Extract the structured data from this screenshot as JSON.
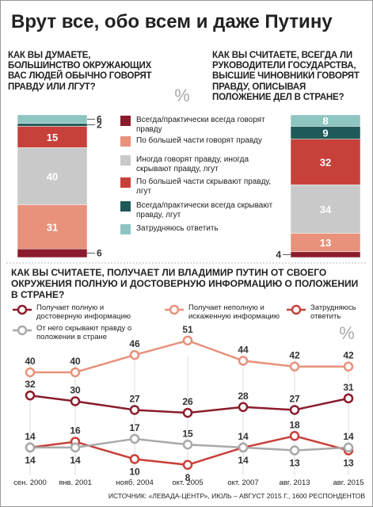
{
  "title": "Врут все, обо всем и даже Путину",
  "source": "ИСТОЧНИК: «ЛЕВАДА-ЦЕНТР», ИЮЛЬ – АВГУСТ 2015 Г., 1600 РЕСПОНДЕНТОВ",
  "chart_data": [
    {
      "type": "stacked-bar",
      "unit": "%",
      "categories": [
        "КАК ВЫ ДУМАЕТЕ, БОЛЬШИНСТВО ОКРУЖАЮЩИХ ВАС ЛЮДЕЙ ОБЫЧНО ГОВОРЯТ ПРАВДУ ИЛИ ЛГУТ?",
        "КАК ВЫ СЧИТАЕТЕ, ВСЕГДА ЛИ РУКОВОДИТЕЛИ ГОСУДАРСТВА, ВЫСШИЕ ЧИНОВНИКИ ГОВОРЯТ ПРАВДУ, ОПИСЫВАЯ ПОЛОЖЕНИЕ ДЕЛ В СТРАНЕ?"
      ],
      "series": [
        {
          "name": "Всегда/практически всегда говорят правду",
          "color": "#8b1c2c",
          "values": [
            6,
            4
          ]
        },
        {
          "name": "По большей части говорят правду",
          "color": "#e8917b",
          "values": [
            31,
            13
          ]
        },
        {
          "name": "Иногда говорят правду, иногда скрывают правду, лгут",
          "color": "#c9c9c9",
          "values": [
            40,
            34
          ]
        },
        {
          "name": "По большей части скрывают правду, лгут",
          "color": "#c8403a",
          "values": [
            15,
            32
          ]
        },
        {
          "name": "Всегда/практически всегда скрывают правду, лгут",
          "color": "#1f5a58",
          "values": [
            2,
            9
          ]
        },
        {
          "name": "Затрудняюсь ответить",
          "color": "#8ec5c0",
          "values": [
            6,
            8
          ]
        }
      ]
    },
    {
      "type": "line",
      "unit": "%",
      "title": "КАК ВЫ СЧИТАЕТЕ, ПОЛУЧАЕТ ЛИ ВЛАДИМИР ПУТИН ОТ СВОЕГО ОКРУЖЕНИЯ ПОЛНУЮ И ДОСТОВЕРНУЮ ИНФОРМАЦИЮ О ПОЛОЖЕНИИ В СТРАНЕ?",
      "categories": [
        "сен. 2000",
        "янв. 2001",
        "нояб. 2004",
        "окт. 2005",
        "окт. 2007",
        "авг. 2013",
        "авг. 2015"
      ],
      "series": [
        {
          "name": "Получает полную и достоверную информацию",
          "color": "#8b1c2c",
          "values": [
            32,
            30,
            27,
            26,
            28,
            27,
            31
          ]
        },
        {
          "name": "Получает неполную и искаженную информацию",
          "color": "#e8917b",
          "values": [
            40,
            40,
            46,
            51,
            44,
            42,
            42
          ]
        },
        {
          "name": "Затрудняюсь ответить",
          "color": "#c8403a",
          "values": [
            14,
            16,
            10,
            8,
            14,
            18,
            13
          ]
        },
        {
          "name": "От него скрывают правду о положении в стране",
          "color": "#a9a9a9",
          "values": [
            14,
            14,
            17,
            15,
            14,
            13,
            14
          ]
        }
      ]
    }
  ]
}
